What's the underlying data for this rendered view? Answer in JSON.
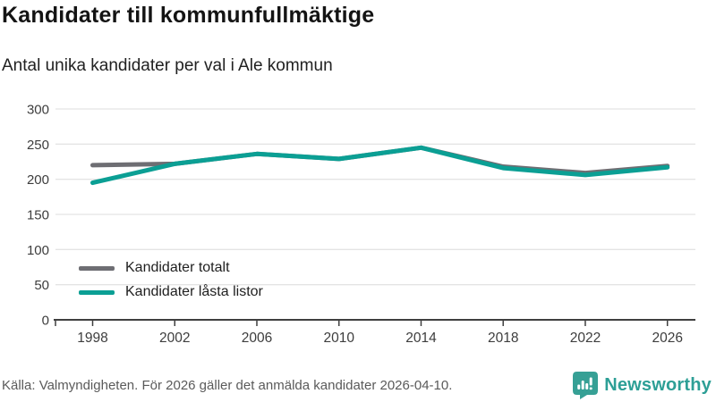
{
  "chart_data": {
    "type": "line",
    "title": "Kandidater till kommunfullmäktige",
    "subtitle": "Antal unika kandidater per val i Ale kommun",
    "x": [
      "1998",
      "2002",
      "2006",
      "2010",
      "2014",
      "2018",
      "2022",
      "2026"
    ],
    "series": [
      {
        "name": "Kandidater totalt",
        "color": "#6e6e73",
        "values": [
          220,
          222,
          236,
          229,
          245,
          218,
          209,
          219
        ]
      },
      {
        "name": "Kandidater låsta listor",
        "color": "#0b9f94",
        "values": [
          195,
          222,
          236,
          229,
          245,
          216,
          206,
          217
        ]
      }
    ],
    "xlabel": "",
    "ylabel": "",
    "ylim": [
      0,
      300
    ],
    "yticks": [
      0,
      50,
      100,
      150,
      200,
      250,
      300
    ],
    "grid": true,
    "legend_position": "inside-bottom-left"
  },
  "footer": {
    "source": "Källa: Valmyndigheten. För 2026 gäller det anmälda kandidater 2026-04-10.",
    "brand": "Newsworthy"
  },
  "colors": {
    "grid": "#e4e4e4",
    "axis": "#3f3f3f",
    "tick_label": "#3d3d3d",
    "brand_teal": "#2d9f96",
    "logo_teal": "#36a095"
  }
}
